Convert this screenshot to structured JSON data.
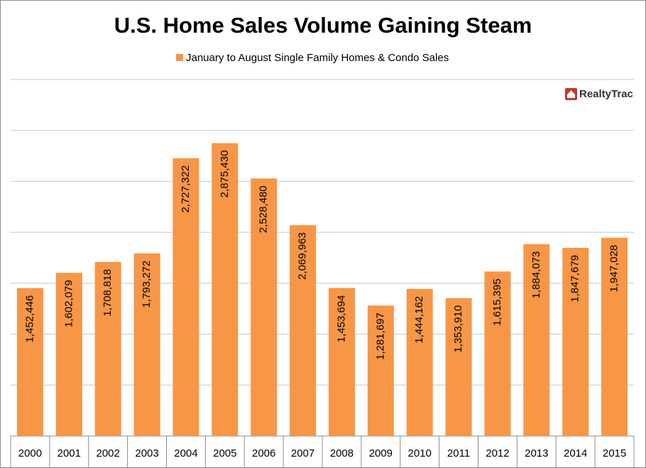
{
  "chart_data": {
    "type": "bar",
    "title": "U.S. Home Sales Volume Gaining Steam",
    "logo": "RealtyTrac",
    "categories": [
      "2000",
      "2001",
      "2002",
      "2003",
      "2004",
      "2005",
      "2006",
      "2007",
      "2008",
      "2009",
      "2010",
      "2011",
      "2012",
      "2013",
      "2014",
      "2015"
    ],
    "series": [
      {
        "name": "January to August Single Family Homes & Condo Sales",
        "color": "#f79646",
        "values": [
          1452446,
          1602079,
          1708818,
          1793272,
          2727322,
          2875430,
          2528480,
          2069963,
          1453694,
          1281697,
          1444162,
          1353910,
          1615395,
          1884073,
          1847679,
          1947028
        ],
        "value_labels": [
          "1,452,446",
          "1,602,079",
          "1,708,818",
          "1,793,272",
          "2,727,322",
          "2,875,430",
          "2,528,480",
          "2,069,963",
          "1,453,694",
          "1,281,697",
          "1,444,162",
          "1,353,910",
          "1,615,395",
          "1,884,073",
          "1,847,679",
          "1,947,028"
        ]
      }
    ],
    "ylim": [
      0,
      3500000
    ],
    "yticks": [
      0,
      500000,
      1000000,
      1500000,
      2000000,
      2500000,
      3000000,
      3500000
    ],
    "grid": true,
    "legend": "top"
  }
}
